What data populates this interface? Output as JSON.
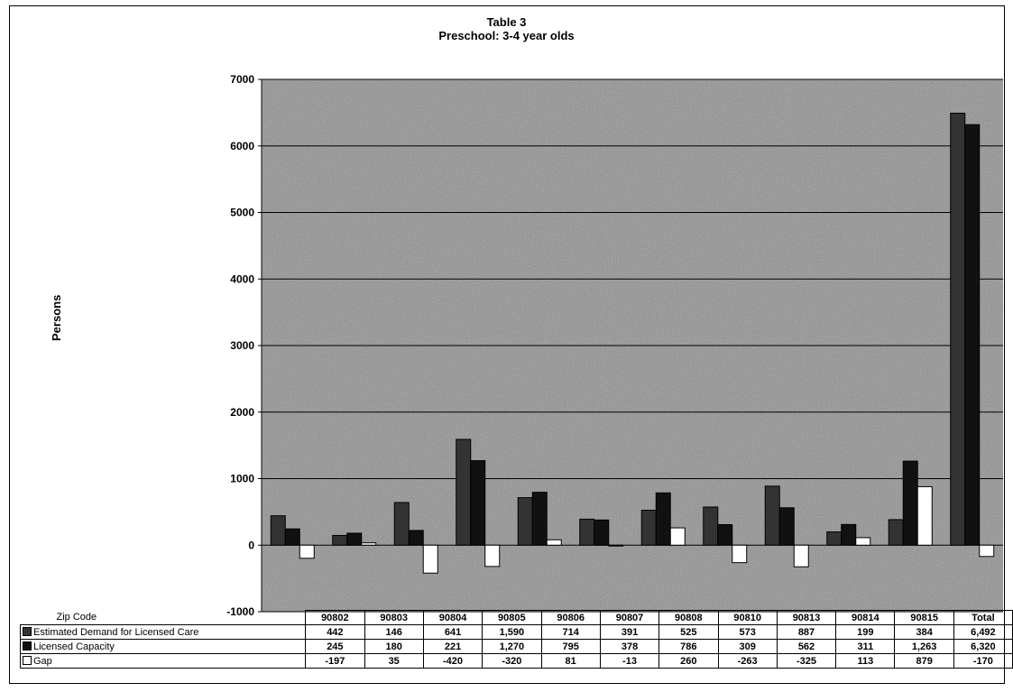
{
  "title_line1": "Table 3",
  "title_line2": "Preschool: 3-4 year olds",
  "ylabel": "Persons",
  "colors": {
    "demand": "#333333",
    "capacity": "#111111",
    "gap": "#ffffff",
    "plot_bg": "#8f8f8f"
  },
  "chart_data": {
    "type": "bar",
    "title": "Table 3 Preschool: 3-4 year olds",
    "ylabel": "Persons",
    "xlabel": "Zip Code",
    "ylim": [
      -1000,
      7000
    ],
    "yticks": [
      -1000,
      0,
      1000,
      2000,
      3000,
      4000,
      5000,
      6000,
      7000
    ],
    "grid": true,
    "legend": "data-table",
    "categories": [
      "90802",
      "90803",
      "90804",
      "90805",
      "90806",
      "90807",
      "90808",
      "90810",
      "90813",
      "90814",
      "90815",
      "Total"
    ],
    "series": [
      {
        "name": "Estimated Demand for Licensed Care",
        "values": [
          442,
          146,
          641,
          1590,
          714,
          391,
          525,
          573,
          887,
          199,
          384,
          6492
        ],
        "labels": [
          "442",
          "146",
          "641",
          "1,590",
          "714",
          "391",
          "525",
          "573",
          "887",
          "199",
          "384",
          "6,492"
        ]
      },
      {
        "name": "Licensed Capacity",
        "values": [
          245,
          180,
          221,
          1270,
          795,
          378,
          786,
          309,
          562,
          311,
          1263,
          6320
        ],
        "labels": [
          "245",
          "180",
          "221",
          "1,270",
          "795",
          "378",
          "786",
          "309",
          "562",
          "311",
          "1,263",
          "6,320"
        ]
      },
      {
        "name": "Gap",
        "values": [
          -197,
          35,
          -420,
          -320,
          81,
          -13,
          260,
          -263,
          -325,
          113,
          879,
          -170
        ],
        "labels": [
          "-197",
          "35",
          "-420",
          "-320",
          "81",
          "-13",
          "260",
          "-263",
          "-325",
          "113",
          "879",
          "-170"
        ]
      }
    ]
  },
  "table": {
    "header_label": "Zip Code"
  }
}
